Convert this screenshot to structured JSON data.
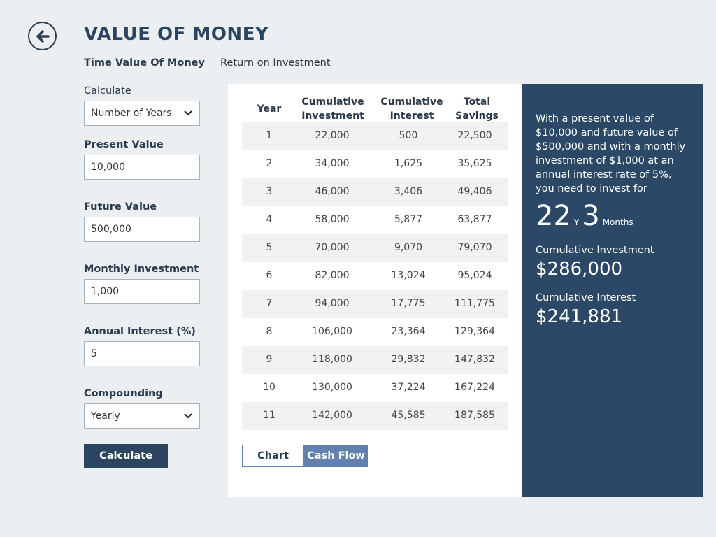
{
  "header": {
    "title": "VALUE OF MONEY",
    "back_icon": "arrow-left-circle-icon"
  },
  "tabs": [
    {
      "label": "Time Value Of Money",
      "active": true
    },
    {
      "label": "Return on Investment",
      "active": false
    }
  ],
  "form": {
    "calculate": {
      "label": "Calculate",
      "value": "Number of Years"
    },
    "present_value": {
      "label": "Present Value",
      "value": "10,000"
    },
    "future_value": {
      "label": "Future Value",
      "value": "500,000"
    },
    "monthly_investment": {
      "label": "Monthly Investment",
      "value": "1,000"
    },
    "annual_interest": {
      "label": "Annual Interest (%)",
      "value": "5"
    },
    "compounding": {
      "label": "Compounding",
      "value": "Yearly"
    },
    "button": "Calculate"
  },
  "table": {
    "headers": [
      "Year",
      "Cumulative Investment",
      "Cumulative Interest",
      "Total Savings"
    ],
    "rows": [
      [
        "1",
        "22,000",
        "500",
        "22,500"
      ],
      [
        "2",
        "34,000",
        "1,625",
        "35,625"
      ],
      [
        "3",
        "46,000",
        "3,406",
        "49,406"
      ],
      [
        "4",
        "58,000",
        "5,877",
        "63,877"
      ],
      [
        "5",
        "70,000",
        "9,070",
        "79,070"
      ],
      [
        "6",
        "82,000",
        "13,024",
        "95,024"
      ],
      [
        "7",
        "94,000",
        "17,775",
        "111,775"
      ],
      [
        "8",
        "106,000",
        "23,364",
        "129,364"
      ],
      [
        "9",
        "118,000",
        "29,832",
        "147,832"
      ],
      [
        "10",
        "130,000",
        "37,224",
        "167,224"
      ],
      [
        "11",
        "142,000",
        "45,585",
        "187,585"
      ]
    ]
  },
  "view_toggle": {
    "chart": "Chart",
    "cash_flow": "Cash Flow",
    "active": "Cash Flow"
  },
  "summary": {
    "description": "With a present value of $10,000 and future value of $500,000 and with a monthly investment of $1,000 at an annual interest rate of 5%, you need to invest for",
    "years": "22",
    "years_unit": "Y",
    "months": "3",
    "months_unit": "Months",
    "cum_investment_label": "Cumulative Investment",
    "cum_investment": "$286,000",
    "cum_interest_label": "Cumulative Interest",
    "cum_interest": "$241,881"
  },
  "colors": {
    "accent": "#2b4560",
    "panel": "#2b4966",
    "toggle_active": "#6381b0"
  }
}
